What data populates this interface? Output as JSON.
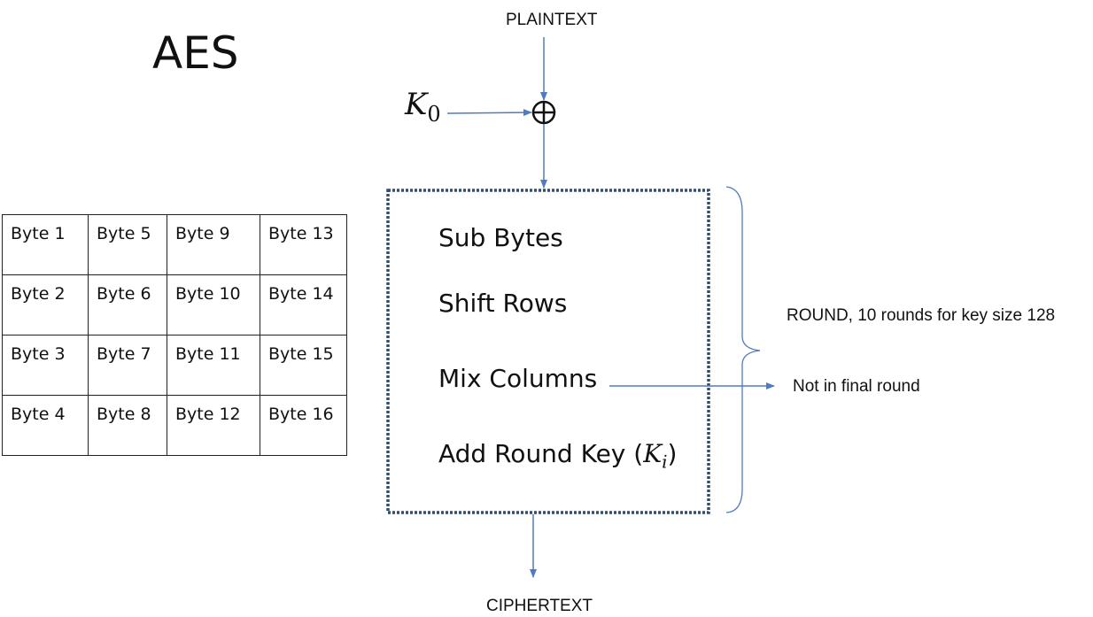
{
  "title": "AES",
  "plaintext_label": "PLAINTEXT",
  "ciphertext_label": "CIPHERTEXT",
  "initial_key": {
    "symbol": "K",
    "subscript": "0"
  },
  "round_steps": {
    "sub_bytes": "Sub Bytes",
    "shift_rows": "Shift Rows",
    "mix_columns": "Mix Columns",
    "add_round_key": "Add Round Key (",
    "round_key_symbol": "K",
    "round_key_subscript": "i",
    "add_round_key_close": ")"
  },
  "round_label": "ROUND, 10 rounds for key size 128",
  "mix_columns_note": "Not in final round",
  "state_matrix": [
    [
      "Byte 1",
      "Byte 5",
      "Byte 9",
      "Byte 13"
    ],
    [
      "Byte 2",
      "Byte 6",
      "Byte 10",
      "Byte 14"
    ],
    [
      "Byte 3",
      "Byte 7",
      "Byte 11",
      "Byte 15"
    ],
    [
      "Byte 4",
      "Byte 8",
      "Byte 12",
      "Byte 16"
    ]
  ],
  "colors": {
    "arrow": "#4f7bbf",
    "box_border": "#2f4f6f",
    "text": "#111111"
  }
}
